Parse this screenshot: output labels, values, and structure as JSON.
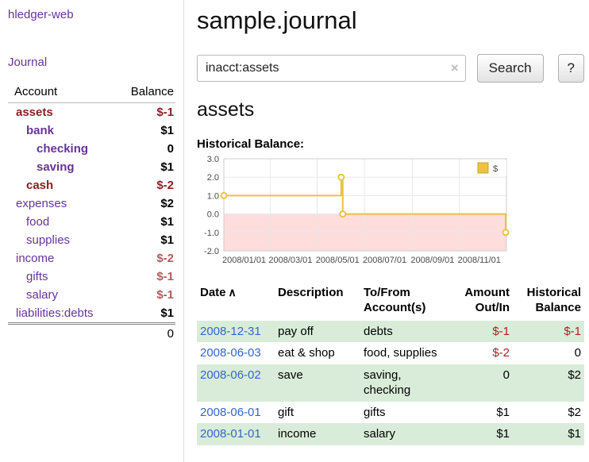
{
  "app": {
    "brand": "hledger-web"
  },
  "sidebar": {
    "journal_link": "Journal",
    "table_headers": {
      "account": "Account",
      "balance": "Balance"
    },
    "accounts": [
      {
        "name": "assets",
        "balance": "$-1",
        "depth": 0,
        "bold": true,
        "negative": true
      },
      {
        "name": "bank",
        "balance": "$1",
        "depth": 1,
        "bold": true,
        "negative": false
      },
      {
        "name": "checking",
        "balance": "0",
        "depth": 2,
        "bold": true,
        "negative": false
      },
      {
        "name": "saving",
        "balance": "$1",
        "depth": 2,
        "bold": true,
        "negative": false
      },
      {
        "name": "cash",
        "balance": "$-2",
        "depth": 1,
        "bold": true,
        "negative": true
      },
      {
        "name": "expenses",
        "balance": "$2",
        "depth": 0,
        "bold": false,
        "negative": false
      },
      {
        "name": "food",
        "balance": "$1",
        "depth": 1,
        "bold": false,
        "negative": false
      },
      {
        "name": "supplies",
        "balance": "$1",
        "depth": 1,
        "bold": false,
        "negative": false
      },
      {
        "name": "income",
        "balance": "$-2",
        "depth": 0,
        "bold": false,
        "negative": true
      },
      {
        "name": "gifts",
        "balance": "$-1",
        "depth": 1,
        "bold": false,
        "negative": true
      },
      {
        "name": "salary",
        "balance": "$-1",
        "depth": 1,
        "bold": false,
        "negative": true
      },
      {
        "name": "liabilities:debts",
        "balance": "$1",
        "depth": 0,
        "bold": false,
        "negative": false
      }
    ],
    "total": "0"
  },
  "main": {
    "title": "sample.journal",
    "search": {
      "value": "inacct:assets",
      "clear_label": "×",
      "search_button": "Search",
      "help_button": "?"
    },
    "account_heading": "assets",
    "chart_title": "Historical Balance:"
  },
  "chart_data": {
    "type": "line",
    "step": true,
    "title": "Historical Balance",
    "ylim": [
      -2,
      3
    ],
    "y_ticks": [
      3,
      2,
      1,
      0,
      -1,
      -2
    ],
    "x_ticks": [
      "2008/01/01",
      "2008/03/01",
      "2008/05/01",
      "2008/07/01",
      "2008/09/01",
      "2008/11/01"
    ],
    "x_range": [
      "2008-01-01",
      "2009-01-01"
    ],
    "series": [
      {
        "name": "$",
        "color": "#EDC240",
        "points": [
          [
            "2008-01-01",
            1
          ],
          [
            "2008-06-01",
            2
          ],
          [
            "2008-06-03",
            0
          ],
          [
            "2008-12-31",
            -1
          ]
        ]
      }
    ],
    "negative_region_color": "#ffdddd",
    "grid_color": "#e8e8e8",
    "border_color": "#cccccc",
    "legend": {
      "label": "$",
      "position": "top-right"
    }
  },
  "register": {
    "headers": {
      "date": "Date",
      "sort_indicator": "∧",
      "description": "Description",
      "accounts": "To/From Account(s)",
      "amount": "Amount Out/In",
      "balance": "Historical Balance"
    },
    "rows": [
      {
        "date": "2008-12-31",
        "description": "pay off",
        "accounts": "debts",
        "amount": "$-1",
        "amount_negative": true,
        "balance": "$-1",
        "balance_negative": true
      },
      {
        "date": "2008-06-03",
        "description": "eat & shop",
        "accounts": "food, supplies",
        "amount": "$-2",
        "amount_negative": true,
        "balance": "0",
        "balance_negative": false
      },
      {
        "date": "2008-06-02",
        "description": "save",
        "accounts": "saving, checking",
        "amount": "0",
        "amount_negative": false,
        "balance": "$2",
        "balance_negative": false
      },
      {
        "date": "2008-06-01",
        "description": "gift",
        "accounts": "gifts",
        "amount": "$1",
        "amount_negative": false,
        "balance": "$2",
        "balance_negative": false
      },
      {
        "date": "2008-01-01",
        "description": "income",
        "accounts": "salary",
        "amount": "$1",
        "amount_negative": false,
        "balance": "$1",
        "balance_negative": false
      }
    ]
  }
}
